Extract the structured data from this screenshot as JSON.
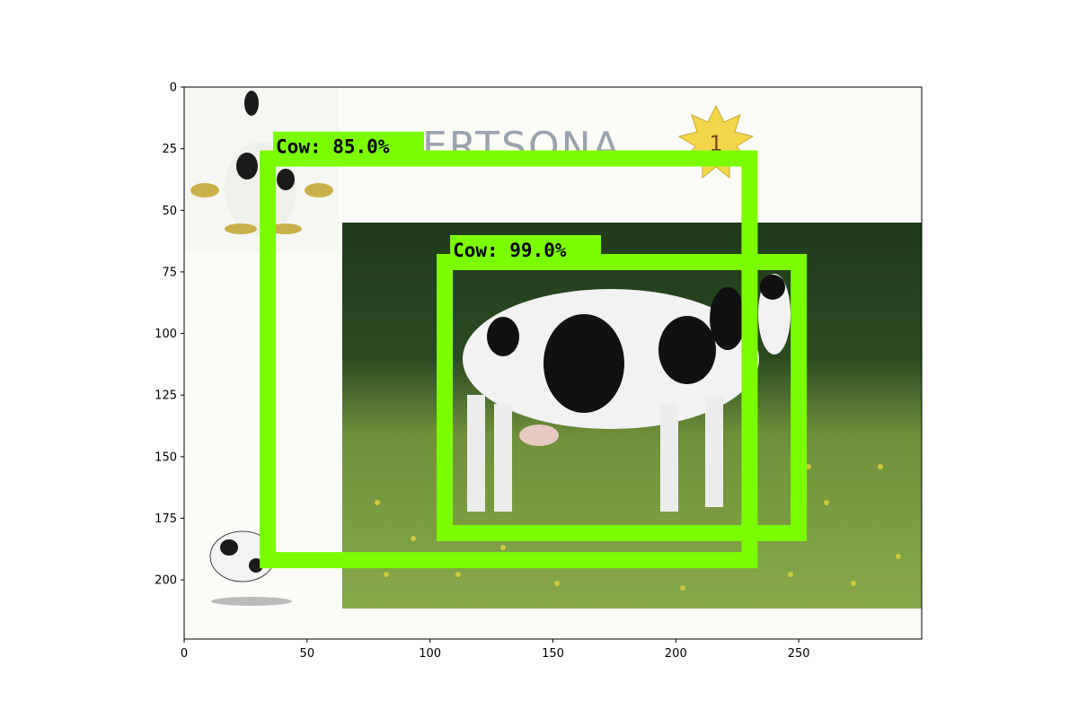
{
  "image": {
    "width_units": 300,
    "height_units": 224,
    "xlim": [
      0,
      300
    ],
    "ylim": [
      224,
      0
    ],
    "x_ticks": [
      0,
      50,
      100,
      150,
      200,
      250
    ],
    "y_ticks": [
      0,
      25,
      50,
      75,
      100,
      125,
      150,
      175,
      200
    ],
    "banner_text": "ERTSONA",
    "badge_text": "1"
  },
  "detections": [
    {
      "label": "Cow:  85.0%",
      "class": "Cow",
      "score": 85.0,
      "box": {
        "xmin": 34,
        "ymin": 29,
        "xmax": 230,
        "ymax": 192
      },
      "color": "#7cfc00"
    },
    {
      "label": "Cow:  99.0%",
      "class": "Cow",
      "score": 99.0,
      "box": {
        "xmin": 106,
        "ymin": 71,
        "xmax": 250,
        "ymax": 181
      },
      "color": "#7cfc00"
    }
  ]
}
